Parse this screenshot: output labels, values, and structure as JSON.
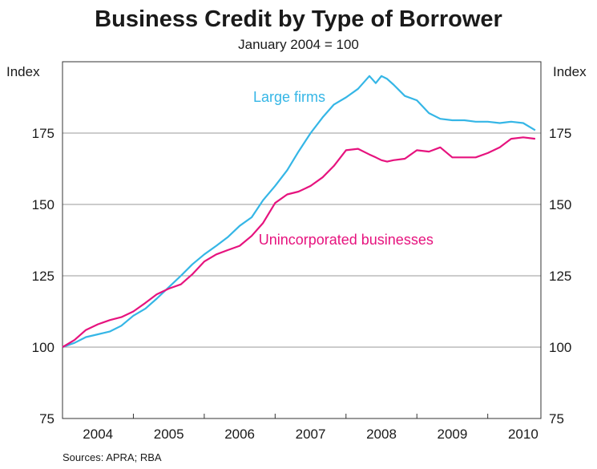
{
  "chart_data": {
    "type": "line",
    "title": "Business Credit by Type of Borrower",
    "subtitle": "January 2004 = 100",
    "left_unit": "Index",
    "right_unit": "Index",
    "ylim": [
      75,
      200
    ],
    "y_ticks": [
      75,
      100,
      125,
      150,
      175
    ],
    "x_range": [
      2004.0,
      2010.75
    ],
    "x_ticks": [
      {
        "label": "2004",
        "x": 2004.5
      },
      {
        "label": "2005",
        "x": 2005.5
      },
      {
        "label": "2006",
        "x": 2006.5
      },
      {
        "label": "2007",
        "x": 2007.5
      },
      {
        "label": "2008",
        "x": 2008.5
      },
      {
        "label": "2009",
        "x": 2009.5
      },
      {
        "label": "2010",
        "x": 2010.5
      }
    ],
    "grid": "horizontal",
    "series": [
      {
        "name": "Large firms",
        "color": "#35b6e6",
        "x": [
          2004.0,
          2004.17,
          2004.33,
          2004.5,
          2004.67,
          2004.83,
          2005.0,
          2005.17,
          2005.33,
          2005.5,
          2005.67,
          2005.83,
          2006.0,
          2006.17,
          2006.33,
          2006.5,
          2006.67,
          2006.83,
          2007.0,
          2007.17,
          2007.33,
          2007.5,
          2007.67,
          2007.83,
          2008.0,
          2008.17,
          2008.33,
          2008.42,
          2008.5,
          2008.58,
          2008.67,
          2008.83,
          2009.0,
          2009.17,
          2009.33,
          2009.5,
          2009.67,
          2009.83,
          2010.0,
          2010.17,
          2010.33,
          2010.5,
          2010.67
        ],
        "values": [
          100,
          101.5,
          103.5,
          104.5,
          105.5,
          107.5,
          111,
          113.5,
          117,
          121,
          125,
          129,
          132.5,
          135.5,
          138.5,
          142.5,
          145.5,
          151.5,
          156.5,
          162,
          168.5,
          175,
          180.5,
          185,
          187.5,
          190.5,
          195,
          192.5,
          195,
          194,
          192,
          188,
          186.5,
          182,
          180,
          179.5,
          179.5,
          179,
          179,
          178.5,
          179,
          178.5,
          176
        ]
      },
      {
        "name": "Unincorporated businesses",
        "color": "#e6137e",
        "x": [
          2004.0,
          2004.17,
          2004.33,
          2004.5,
          2004.67,
          2004.83,
          2005.0,
          2005.17,
          2005.33,
          2005.5,
          2005.67,
          2005.83,
          2006.0,
          2006.17,
          2006.33,
          2006.5,
          2006.67,
          2006.83,
          2007.0,
          2007.17,
          2007.33,
          2007.5,
          2007.67,
          2007.83,
          2008.0,
          2008.17,
          2008.33,
          2008.42,
          2008.5,
          2008.58,
          2008.67,
          2008.83,
          2009.0,
          2009.17,
          2009.33,
          2009.5,
          2009.67,
          2009.83,
          2010.0,
          2010.17,
          2010.33,
          2010.5,
          2010.67
        ],
        "values": [
          100,
          102.5,
          106,
          108,
          109.5,
          110.5,
          112.5,
          115.5,
          118.5,
          120.5,
          122,
          125.5,
          130,
          132.5,
          134,
          135.5,
          139,
          143.5,
          150.5,
          153.5,
          154.5,
          156.5,
          159.5,
          163.5,
          169,
          169.5,
          167.5,
          166.5,
          165.5,
          165,
          165.5,
          166,
          169,
          168.5,
          170,
          166.5,
          166.5,
          166.5,
          168,
          170,
          173,
          173.5,
          173
        ]
      }
    ],
    "annotations": [
      {
        "text": "Large firms",
        "series": 0,
        "at": [
          2007.2,
          186
        ]
      },
      {
        "text": "Unincorporated businesses",
        "series": 1,
        "at": [
          2008.0,
          136
        ]
      }
    ]
  },
  "source_note": "Sources: APRA; RBA"
}
